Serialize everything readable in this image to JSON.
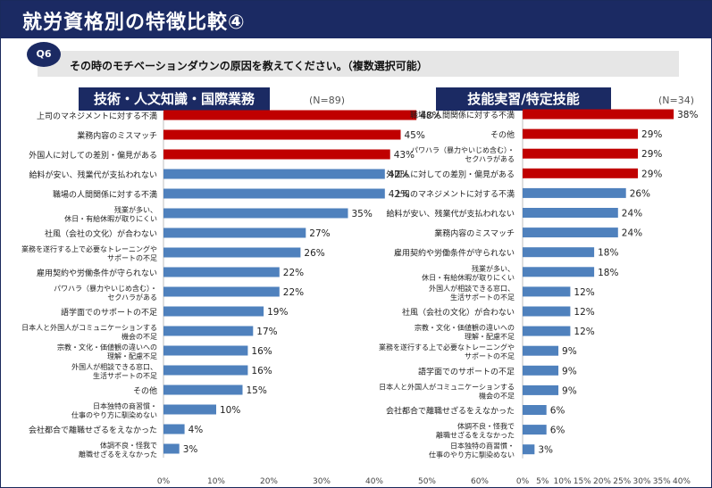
{
  "title": "就労資格別の特徴比較④",
  "question": {
    "badge": "Q6",
    "text": "その時のモチベーションダウンの原因を教えてください。（複数選択可能）"
  },
  "colors": {
    "highlight": "#c00000",
    "normal": "#4f81bd",
    "navy": "#1b2a63"
  },
  "chart_data": [
    {
      "type": "bar",
      "orientation": "horizontal",
      "title": "技術・人文知識・国際業務",
      "n_label": "(N=89)",
      "x_ticks": [
        "0%",
        "10%",
        "20%",
        "30%",
        "40%",
        "50%",
        "60%"
      ],
      "xlim": [
        0,
        60
      ],
      "categories": [
        [
          "上司のマネジメントに対する不満"
        ],
        [
          "業務内容のミスマッチ"
        ],
        [
          "外国人に対しての差別・偏見がある"
        ],
        [
          "給料が安い、残業代が支払われない"
        ],
        [
          "職場の人間関係に対する不満"
        ],
        [
          "残業が多い、",
          "休日・有給休暇が取りにくい"
        ],
        [
          "社風（会社の文化）が合わない"
        ],
        [
          "業務を遂行する上で必要なトレーニングや",
          "サポートの不足"
        ],
        [
          "雇用契約や労働条件が守られない"
        ],
        [
          "パワハラ（暴力やいじめ含む）・",
          "セクハラがある"
        ],
        [
          "語学面でのサポートの不足"
        ],
        [
          "日本人と外国人がコミュニケーションする",
          "機会の不足"
        ],
        [
          "宗教・文化・価値観の違いへの",
          "理解・配慮不足"
        ],
        [
          "外国人が相談できる窓口、",
          "生活サポートの不足"
        ],
        [
          "その他"
        ],
        [
          "日本独特の商習慣・",
          "仕事のやり方に馴染めない"
        ],
        [
          "会社都合で離職せざるをえなかった"
        ],
        [
          "体調不良・怪我で",
          "離職せざるをえなかった"
        ]
      ],
      "values": [
        48,
        45,
        43,
        42,
        42,
        35,
        27,
        26,
        22,
        22,
        19,
        17,
        16,
        16,
        15,
        10,
        4,
        3
      ],
      "value_labels": [
        "48%",
        "45%",
        "43%",
        "42%",
        "42%",
        "35%",
        "27%",
        "26%",
        "22%",
        "22%",
        "19%",
        "17%",
        "16%",
        "16%",
        "15%",
        "10%",
        "4%",
        "3%"
      ],
      "highlight_top": 3
    },
    {
      "type": "bar",
      "orientation": "horizontal",
      "title": "技能実習/特定技能",
      "n_label": "(N=34)",
      "x_ticks": [
        "0%",
        "5%",
        "10%",
        "15%",
        "20%",
        "25%",
        "30%",
        "35%",
        "40%"
      ],
      "xlim": [
        0,
        40
      ],
      "categories": [
        [
          "職場の人間関係に対する不満"
        ],
        [
          "その他"
        ],
        [
          "パワハラ（暴力やいじめ含む）・",
          "セクハラがある"
        ],
        [
          "外国人に対しての差別・偏見がある"
        ],
        [
          "上司のマネジメントに対する不満"
        ],
        [
          "給料が安い、残業代が支払われない"
        ],
        [
          "業務内容のミスマッチ"
        ],
        [
          "雇用契約や労働条件が守られない"
        ],
        [
          "残業が多い、",
          "休日・有給休暇が取りにくい"
        ],
        [
          "外国人が相談できる窓口、",
          "生活サポートの不足"
        ],
        [
          "社風（会社の文化）が合わない"
        ],
        [
          "宗教・文化・価値観の違いへの",
          "理解・配慮不足"
        ],
        [
          "業務を遂行する上で必要なトレーニングや",
          "サポートの不足"
        ],
        [
          "語学面でのサポートの不足"
        ],
        [
          "日本人と外国人がコミュニケーションする",
          "機会の不足"
        ],
        [
          "会社都合で離職せざるをえなかった"
        ],
        [
          "体調不良・怪我で",
          "離職せざるをえなかった"
        ],
        [
          "日本独特の商習慣・",
          "仕事のやり方に馴染めない"
        ]
      ],
      "values": [
        38,
        29,
        29,
        29,
        26,
        24,
        24,
        18,
        18,
        12,
        12,
        12,
        9,
        9,
        9,
        6,
        6,
        3
      ],
      "value_labels": [
        "38%",
        "29%",
        "29%",
        "29%",
        "26%",
        "24%",
        "24%",
        "18%",
        "18%",
        "12%",
        "12%",
        "12%",
        "9%",
        "9%",
        "9%",
        "6%",
        "6%",
        "3%"
      ],
      "highlight_top": 4
    }
  ]
}
